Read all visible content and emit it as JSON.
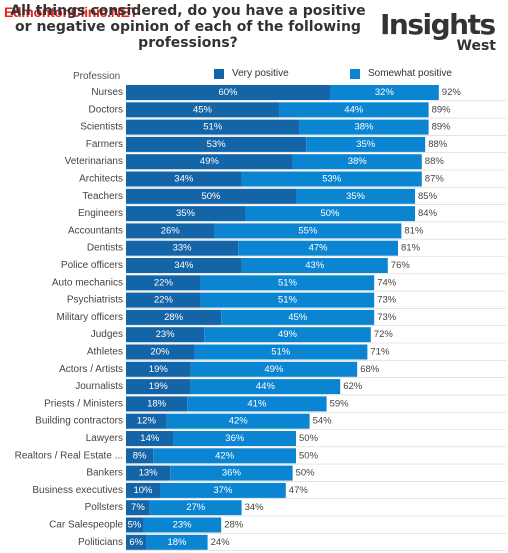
{
  "watermark": "EdmontonClinic.NET",
  "logo": {
    "main": "Insights",
    "sub": "West"
  },
  "colors": {
    "very": "#1464a8",
    "somewhat": "#0b85d1",
    "text": "#444444"
  },
  "chart_data": {
    "type": "bar",
    "stacked": true,
    "orientation": "horizontal",
    "title_lines": [
      "All things considered, do you have a positive",
      "or negative opinion of each of the following",
      "professions?"
    ],
    "category_header": "Profession",
    "value_suffix": "%",
    "xlim": [
      0,
      100
    ],
    "categories": [
      "Nurses",
      "Doctors",
      "Scientists",
      "Farmers",
      "Veterinarians",
      "Architects",
      "Teachers",
      "Engineers",
      "Accountants",
      "Dentists",
      "Police officers",
      "Auto mechanics",
      "Psychiatrists",
      "Military officers",
      "Judges",
      "Athletes",
      "Actors / Artists",
      "Journalists",
      "Priests / Ministers",
      "Building contractors",
      "Lawyers",
      "Realtors / Real Estate ...",
      "Bankers",
      "Business executives",
      "Pollsters",
      "Car Salespeople",
      "Politicians"
    ],
    "series": [
      {
        "name": "Very positive",
        "values": [
          60,
          45,
          51,
          53,
          49,
          34,
          50,
          35,
          26,
          33,
          34,
          22,
          22,
          28,
          23,
          20,
          19,
          19,
          18,
          12,
          14,
          8,
          13,
          10,
          7,
          5,
          6
        ]
      },
      {
        "name": "Somewhat positive",
        "values": [
          32,
          44,
          38,
          35,
          38,
          53,
          35,
          50,
          55,
          47,
          43,
          51,
          51,
          45,
          49,
          51,
          49,
          44,
          41,
          42,
          36,
          42,
          36,
          37,
          27,
          23,
          18
        ]
      }
    ],
    "totals": [
      92,
      89,
      89,
      88,
      88,
      87,
      85,
      84,
      81,
      81,
      76,
      74,
      73,
      73,
      72,
      71,
      68,
      62,
      59,
      54,
      50,
      50,
      50,
      47,
      34,
      28,
      24
    ]
  }
}
